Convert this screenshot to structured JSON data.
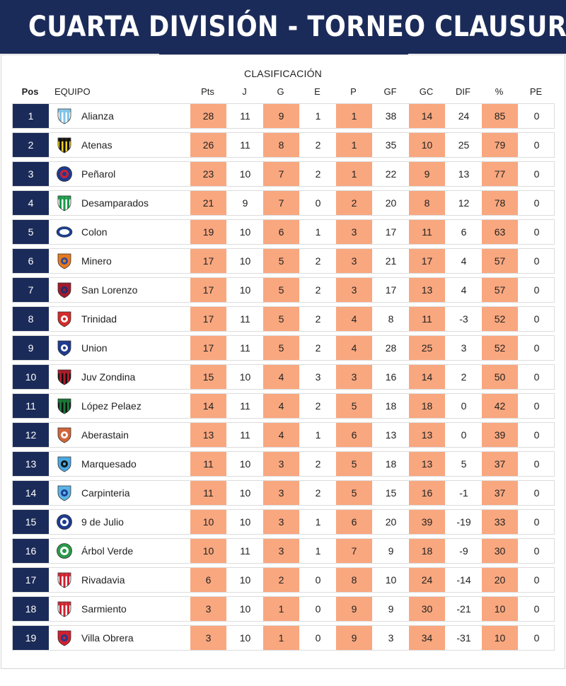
{
  "title": "CUARTA DIVISIÓN  - TORNEO CLAUSURA",
  "subtitle": "CLASIFICACIÓN",
  "headers": {
    "pos": "Pos",
    "team": "EQUIPO",
    "pts": "Pts",
    "j": "J",
    "g": "G",
    "e": "E",
    "p": "P",
    "gf": "GF",
    "gc": "GC",
    "dif": "DIF",
    "pct": "%",
    "pe": "PE"
  },
  "colors": {
    "banner": "#1b2b59",
    "highlight": "#f9a77f",
    "position": "#1b2b59"
  },
  "rows": [
    {
      "pos": "1",
      "team": "Alianza",
      "pts": "28",
      "j": "11",
      "g": "9",
      "e": "1",
      "p": "1",
      "gf": "38",
      "gc": "14",
      "dif": "24",
      "pct": "85",
      "pe": "0",
      "logo": "alianza-crest-icon",
      "c1": "#7fc4e8",
      "c2": "#ffffff",
      "shape": "stripes"
    },
    {
      "pos": "2",
      "team": "Atenas",
      "pts": "26",
      "j": "11",
      "g": "8",
      "e": "2",
      "p": "1",
      "gf": "35",
      "gc": "10",
      "dif": "25",
      "pct": "79",
      "pe": "0",
      "logo": "atenas-crest-icon",
      "c1": "#111111",
      "c2": "#f2d21b",
      "shape": "stripes"
    },
    {
      "pos": "3",
      "team": "Peñarol",
      "pts": "23",
      "j": "10",
      "g": "7",
      "e": "2",
      "p": "1",
      "gf": "22",
      "gc": "9",
      "dif": "13",
      "pct": "77",
      "pe": "0",
      "logo": "penarol-crest-icon",
      "c1": "#1d3b8f",
      "c2": "#d0202f",
      "shape": "circle"
    },
    {
      "pos": "4",
      "team": "Desamparados",
      "pts": "21",
      "j": "9",
      "g": "7",
      "e": "0",
      "p": "2",
      "gf": "20",
      "gc": "8",
      "dif": "12",
      "pct": "78",
      "pe": "0",
      "logo": "desamparados-crest-icon",
      "c1": "#1a9a4a",
      "c2": "#ffffff",
      "shape": "stripes"
    },
    {
      "pos": "5",
      "team": "Colon",
      "pts": "19",
      "j": "10",
      "g": "6",
      "e": "1",
      "p": "3",
      "gf": "17",
      "gc": "11",
      "dif": "6",
      "pct": "63",
      "pe": "0",
      "logo": "colon-crest-icon",
      "c1": "#1b3f8f",
      "c2": "#ffffff",
      "shape": "oval"
    },
    {
      "pos": "6",
      "team": "Minero",
      "pts": "17",
      "j": "10",
      "g": "5",
      "e": "2",
      "p": "3",
      "gf": "21",
      "gc": "17",
      "dif": "4",
      "pct": "57",
      "pe": "0",
      "logo": "minero-crest-icon",
      "c1": "#e67a1f",
      "c2": "#2a4da0",
      "shape": "shield"
    },
    {
      "pos": "7",
      "team": "San Lorenzo",
      "pts": "17",
      "j": "10",
      "g": "5",
      "e": "2",
      "p": "3",
      "gf": "17",
      "gc": "13",
      "dif": "4",
      "pct": "57",
      "pe": "0",
      "logo": "san-lorenzo-crest-icon",
      "c1": "#a3192c",
      "c2": "#1d2f6f",
      "shape": "shield"
    },
    {
      "pos": "8",
      "team": "Trinidad",
      "pts": "17",
      "j": "11",
      "g": "5",
      "e": "2",
      "p": "4",
      "gf": "8",
      "gc": "11",
      "dif": "-3",
      "pct": "52",
      "pe": "0",
      "logo": "trinidad-crest-icon",
      "c1": "#d52a2a",
      "c2": "#ffffff",
      "shape": "shield"
    },
    {
      "pos": "9",
      "team": "Union",
      "pts": "17",
      "j": "11",
      "g": "5",
      "e": "2",
      "p": "4",
      "gf": "28",
      "gc": "25",
      "dif": "3",
      "pct": "52",
      "pe": "0",
      "logo": "union-crest-icon",
      "c1": "#1d3b8f",
      "c2": "#ffffff",
      "shape": "shield"
    },
    {
      "pos": "10",
      "team": "Juv Zondina",
      "pts": "15",
      "j": "10",
      "g": "4",
      "e": "3",
      "p": "3",
      "gf": "16",
      "gc": "14",
      "dif": "2",
      "pct": "50",
      "pe": "0",
      "logo": "juv-zondina-crest-icon",
      "c1": "#b01d2a",
      "c2": "#111111",
      "shape": "stripes"
    },
    {
      "pos": "11",
      "team": "López Pelaez",
      "pts": "14",
      "j": "11",
      "g": "4",
      "e": "2",
      "p": "5",
      "gf": "18",
      "gc": "18",
      "dif": "0",
      "pct": "42",
      "pe": "0",
      "logo": "lopez-pelaez-crest-icon",
      "c1": "#1a7a3a",
      "c2": "#111111",
      "shape": "stripes"
    },
    {
      "pos": "12",
      "team": "Aberastain",
      "pts": "13",
      "j": "11",
      "g": "4",
      "e": "1",
      "p": "6",
      "gf": "13",
      "gc": "13",
      "dif": "0",
      "pct": "39",
      "pe": "0",
      "logo": "aberastain-crest-icon",
      "c1": "#d2663a",
      "c2": "#ffffff",
      "shape": "shield"
    },
    {
      "pos": "13",
      "team": "Marquesado",
      "pts": "11",
      "j": "10",
      "g": "3",
      "e": "2",
      "p": "5",
      "gf": "18",
      "gc": "13",
      "dif": "5",
      "pct": "37",
      "pe": "0",
      "logo": "marquesado-crest-icon",
      "c1": "#4aa8e0",
      "c2": "#111111",
      "shape": "shield"
    },
    {
      "pos": "14",
      "team": "Carpinteria",
      "pts": "11",
      "j": "10",
      "g": "3",
      "e": "2",
      "p": "5",
      "gf": "15",
      "gc": "16",
      "dif": "-1",
      "pct": "37",
      "pe": "0",
      "logo": "carpinteria-crest-icon",
      "c1": "#5ab4e6",
      "c2": "#1d3b8f",
      "shape": "shield"
    },
    {
      "pos": "15",
      "team": "9 de Julio",
      "pts": "10",
      "j": "10",
      "g": "3",
      "e": "1",
      "p": "6",
      "gf": "20",
      "gc": "39",
      "dif": "-19",
      "pct": "33",
      "pe": "0",
      "logo": "nueve-de-julio-crest-icon",
      "c1": "#1d3b8f",
      "c2": "#ffffff",
      "shape": "circle"
    },
    {
      "pos": "16",
      "team": "Árbol Verde",
      "pts": "10",
      "j": "11",
      "g": "3",
      "e": "1",
      "p": "7",
      "gf": "9",
      "gc": "18",
      "dif": "-9",
      "pct": "30",
      "pe": "0",
      "logo": "arbol-verde-crest-icon",
      "c1": "#2a9a4a",
      "c2": "#ffffff",
      "shape": "circle"
    },
    {
      "pos": "17",
      "team": "Rivadavia",
      "pts": "6",
      "j": "10",
      "g": "2",
      "e": "0",
      "p": "8",
      "gf": "10",
      "gc": "24",
      "dif": "-14",
      "pct": "20",
      "pe": "0",
      "logo": "rivadavia-crest-icon",
      "c1": "#d0202f",
      "c2": "#ffffff",
      "shape": "stripes"
    },
    {
      "pos": "18",
      "team": "Sarmiento",
      "pts": "3",
      "j": "10",
      "g": "1",
      "e": "0",
      "p": "9",
      "gf": "9",
      "gc": "30",
      "dif": "-21",
      "pct": "10",
      "pe": "0",
      "logo": "sarmiento-crest-icon",
      "c1": "#d0202f",
      "c2": "#ffffff",
      "shape": "stripes"
    },
    {
      "pos": "19",
      "team": "Villa Obrera",
      "pts": "3",
      "j": "10",
      "g": "1",
      "e": "0",
      "p": "9",
      "gf": "3",
      "gc": "34",
      "dif": "-31",
      "pct": "10",
      "pe": "0",
      "logo": "villa-obrera-crest-icon",
      "c1": "#d0202f",
      "c2": "#1d3b8f",
      "shape": "shield"
    }
  ]
}
